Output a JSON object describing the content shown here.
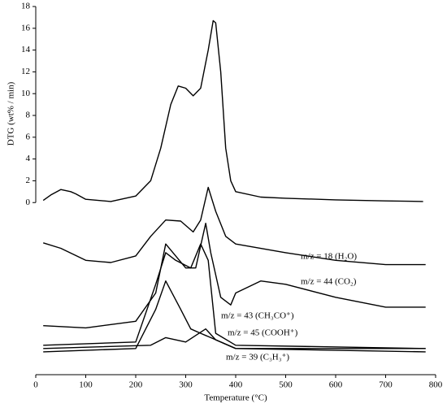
{
  "chart_data": {
    "type": "line",
    "xlabel": "Temperature (°C)",
    "ylabel": "DTG (wt% / min)",
    "xlim": [
      0,
      800
    ],
    "xticks": [
      0,
      100,
      200,
      300,
      400,
      500,
      600,
      700,
      800
    ],
    "ylim": [
      -15.8,
      18
    ],
    "yticks": [
      0,
      2,
      4,
      6,
      8,
      10,
      12,
      14,
      16,
      18
    ],
    "grid": false,
    "series": [
      {
        "color": "#000000",
        "x": [
          15,
          30,
          50,
          70,
          80,
          100,
          150,
          200,
          230,
          250,
          270,
          285,
          300,
          315,
          330,
          345,
          355,
          360,
          370,
          380,
          390,
          400,
          450,
          500,
          600,
          700,
          775
        ],
        "values": [
          0.2,
          0.7,
          1.2,
          1.0,
          0.8,
          0.3,
          0.1,
          0.6,
          2,
          5,
          9,
          10.7,
          10.5,
          9.8,
          10.5,
          14,
          16.7,
          16.5,
          12,
          5,
          2,
          1,
          0.5,
          0.4,
          0.25,
          0.15,
          0.1
        ]
      },
      {
        "name": "m/z = 18 (H₂O)",
        "color": "#000000",
        "x": [
          15,
          50,
          100,
          150,
          200,
          230,
          260,
          290,
          315,
          330,
          345,
          360,
          380,
          400,
          500,
          600,
          700,
          780
        ],
        "values": [
          -3.7,
          -4.2,
          -5.3,
          -5.5,
          -4.9,
          -3.1,
          -1.6,
          -1.7,
          -2.7,
          -1.6,
          1.4,
          -0.8,
          -3.1,
          -3.8,
          -4.6,
          -5.3,
          -5.7,
          -5.7
        ]
      },
      {
        "name": "m/z = 44 (CO₂)",
        "color": "#000000",
        "x": [
          15,
          100,
          200,
          240,
          260,
          280,
          300,
          320,
          340,
          350,
          370,
          390,
          400,
          450,
          500,
          600,
          700,
          780
        ],
        "values": [
          -11.3,
          -11.5,
          -10.9,
          -8.3,
          -3.8,
          -4.9,
          -6,
          -6,
          -1.9,
          -4.6,
          -8.7,
          -9.4,
          -8.3,
          -7.2,
          -7.5,
          -8.7,
          -9.6,
          -9.6
        ]
      },
      {
        "name": "m/z = 43 (CH₃CO⁺)",
        "color": "#000000",
        "x": [
          15,
          200,
          240,
          260,
          280,
          310,
          330,
          345,
          360,
          400,
          780
        ],
        "values": [
          -13.1,
          -12.8,
          -7.5,
          -4.6,
          -5.3,
          -6,
          -3.8,
          -5.3,
          -12,
          -13.1,
          -13.4
        ]
      },
      {
        "name": "m/z = 45 (COOH⁺)",
        "color": "#000000",
        "x": [
          15,
          200,
          240,
          260,
          290,
          310,
          330,
          350,
          400,
          780
        ],
        "values": [
          -13.7,
          -13.4,
          -9.8,
          -7.2,
          -9.8,
          -11.6,
          -12,
          -12.4,
          -13.4,
          -13.7
        ]
      },
      {
        "name": "m/z = 39 (C₃H₃⁺)",
        "color": "#000000",
        "x": [
          15,
          230,
          260,
          300,
          340,
          360,
          400,
          780
        ],
        "values": [
          -13.4,
          -13.1,
          -12.4,
          -12.8,
          -11.6,
          -12.6,
          -13.4,
          -13.4
        ]
      }
    ]
  }
}
